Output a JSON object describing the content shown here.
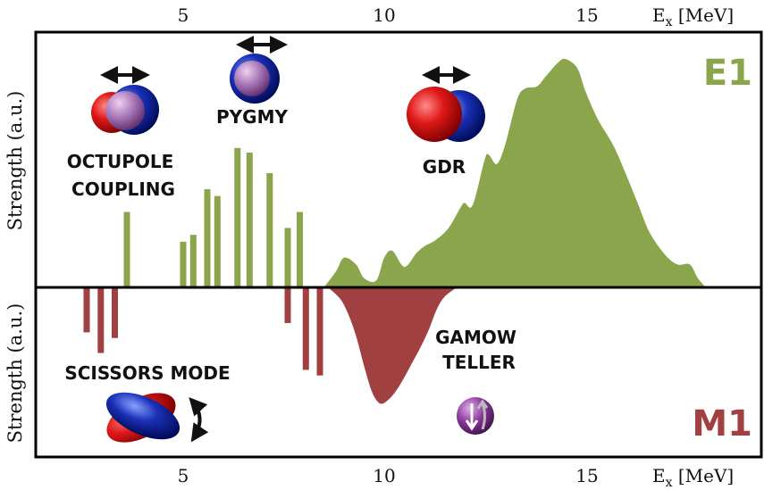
{
  "chart_data": {
    "type": "bar",
    "xlabel_top": "E",
    "xlabel_top_sub": "x",
    "xlabel_top_unit": "[MeV]",
    "xlabel_bottom": "E",
    "xlabel_bottom_sub": "x",
    "xlabel_bottom_unit": "[MeV]",
    "x_ticks": [
      "5",
      "10",
      "15"
    ],
    "xlim": [
      1.3,
      19.4
    ],
    "panels": {
      "E1": {
        "label": "E1",
        "ylabel": "Strength (a.u.)",
        "color": "#8aa54c",
        "discrete_x": [
          3.6,
          5.0,
          5.25,
          5.6,
          5.85,
          6.35,
          6.65,
          7.15,
          7.6,
          7.9
        ],
        "discrete_values": [
          0.33,
          0.2,
          0.23,
          0.43,
          0.4,
          0.61,
          0.59,
          0.5,
          0.26,
          0.33
        ],
        "continuum_x": [
          8.5,
          8.8,
          9.0,
          9.3,
          9.5,
          9.8,
          10.0,
          10.2,
          10.5,
          10.8,
          11.0,
          11.3,
          11.6,
          11.9,
          12.0,
          12.2,
          12.5,
          12.6,
          12.8,
          13.0,
          13.3,
          13.5,
          13.8,
          14.0,
          14.3,
          14.5,
          14.8,
          15.0,
          15.3,
          15.7,
          16.0,
          16.3,
          16.6,
          17.0,
          17.3,
          17.6,
          17.8,
          18.0
        ],
        "continuum_values": [
          0.0,
          0.07,
          0.13,
          0.1,
          0.04,
          0.03,
          0.13,
          0.16,
          0.09,
          0.15,
          0.18,
          0.21,
          0.26,
          0.35,
          0.37,
          0.36,
          0.56,
          0.58,
          0.54,
          0.62,
          0.82,
          0.87,
          0.88,
          0.92,
          0.98,
          1.0,
          0.96,
          0.86,
          0.74,
          0.62,
          0.5,
          0.37,
          0.24,
          0.14,
          0.1,
          0.1,
          0.04,
          0.0
        ]
      },
      "M1": {
        "label": "M1",
        "ylabel": "Strength (a.u.)",
        "color": "#a04040",
        "discrete_x": [
          2.6,
          2.95,
          3.3,
          7.6,
          8.05,
          8.4
        ],
        "discrete_values": [
          -0.24,
          -0.35,
          -0.27,
          -0.19,
          -0.44,
          -0.47
        ],
        "continuum_x": [
          8.6,
          8.9,
          9.1,
          9.3,
          9.5,
          9.7,
          9.9,
          10.1,
          10.3,
          10.5,
          10.7,
          10.9,
          11.1,
          11.3,
          11.5,
          11.8
        ],
        "continuum_values": [
          0.0,
          -0.06,
          -0.14,
          -0.26,
          -0.42,
          -0.56,
          -0.62,
          -0.6,
          -0.55,
          -0.48,
          -0.4,
          -0.32,
          -0.23,
          -0.12,
          -0.05,
          0.0
        ]
      }
    },
    "annotations": [
      {
        "id": "octupole",
        "lines": [
          "OCTUPOLE",
          "COUPLING"
        ]
      },
      {
        "id": "pygmy",
        "lines": [
          "PYGMY"
        ]
      },
      {
        "id": "gdr",
        "lines": [
          "GDR"
        ]
      },
      {
        "id": "scissors",
        "lines": [
          "SCISSORS MODE"
        ]
      },
      {
        "id": "gamow",
        "lines": [
          "GAMOW",
          "TELLER"
        ]
      }
    ]
  },
  "colors": {
    "e1": "#8aa54c",
    "m1": "#a04040",
    "proton_red": "#e01818",
    "neutron_blue": "#1a30b8",
    "overlap_violet": "#a878b8"
  },
  "icons": [
    "double-arrow-icon",
    "nucleus-sphere-icon",
    "curved-arrows-icon",
    "spin-flip-icon"
  ]
}
